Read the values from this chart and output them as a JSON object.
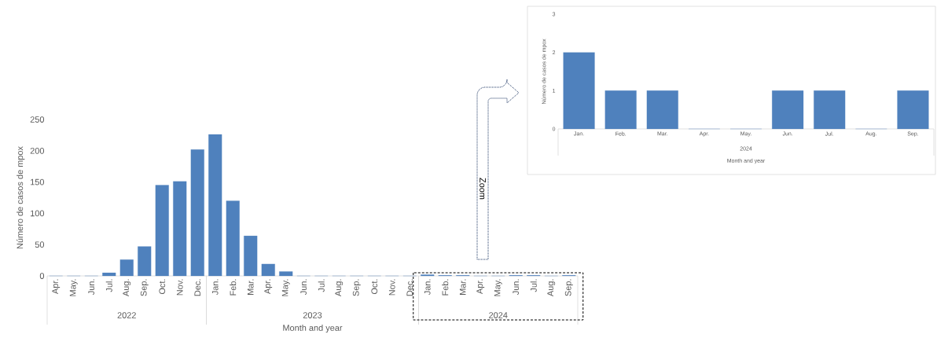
{
  "chart_data": [
    {
      "type": "bar",
      "ylabel": "Número de casos de mpox",
      "xlabel": "Month and year",
      "x": [
        "2022-04",
        "2022-05",
        "2022-06",
        "2022-07",
        "2022-08",
        "2022-09",
        "2022-10",
        "2022-11",
        "2022-12",
        "2023-01",
        "2023-02",
        "2023-03",
        "2023-04",
        "2023-05",
        "2023-06",
        "2023-07",
        "2023-08",
        "2023-09",
        "2023-10",
        "2023-11",
        "2023-12",
        "2024-01",
        "2024-02",
        "2024-03",
        "2024-04",
        "2024-05",
        "2024-06",
        "2024-07",
        "2024-08",
        "2024-09"
      ],
      "values": [
        0,
        0,
        0,
        5,
        26,
        47,
        145,
        151,
        202,
        226,
        120,
        64,
        19,
        7,
        0,
        0,
        0,
        0,
        0,
        0,
        0,
        2,
        1,
        1,
        0,
        0,
        1,
        1,
        0,
        1
      ],
      "color": "#4f81bd",
      "xlim": [
        "2022-03-16",
        "2024-09-16"
      ],
      "ylim": [
        0,
        250
      ],
      "yticks": [
        0,
        50,
        100,
        150,
        200,
        250
      ],
      "xticks": [
        {
          "value": "2022-04",
          "label": "Apr."
        },
        {
          "value": "2022-05",
          "label": "May."
        },
        {
          "value": "2022-06",
          "label": "Jun."
        },
        {
          "value": "2022-07",
          "label": "Jul."
        },
        {
          "value": "2022-08",
          "label": "Aug."
        },
        {
          "value": "2022-09",
          "label": "Sep."
        },
        {
          "value": "2022-10",
          "label": "Oct."
        },
        {
          "value": "2022-11",
          "label": "Nov."
        },
        {
          "value": "2022-12",
          "label": "Dec."
        },
        {
          "value": "2023-01",
          "label": "Jan."
        },
        {
          "value": "2023-02",
          "label": "Feb."
        },
        {
          "value": "2023-03",
          "label": "Mar."
        },
        {
          "value": "2023-04",
          "label": "Apr."
        },
        {
          "value": "2023-05",
          "label": "May."
        },
        {
          "value": "2023-06",
          "label": "Jun."
        },
        {
          "value": "2023-07",
          "label": "Jul."
        },
        {
          "value": "2023-08",
          "label": "Aug."
        },
        {
          "value": "2023-09",
          "label": "Sep."
        },
        {
          "value": "2023-10",
          "label": "Oct."
        },
        {
          "value": "2023-11",
          "label": "Nov."
        },
        {
          "value": "2023-12",
          "label": "Dec."
        },
        {
          "value": "2024-01",
          "label": "Jan."
        },
        {
          "value": "2024-02",
          "label": "Feb."
        },
        {
          "value": "2024-03",
          "label": "Mar."
        },
        {
          "value": "2024-04",
          "label": "Apr."
        },
        {
          "value": "2024-05",
          "label": "May."
        },
        {
          "value": "2024-06",
          "label": "Jun."
        },
        {
          "value": "2024-07",
          "label": "Jul."
        },
        {
          "value": "2024-08",
          "label": "Aug."
        },
        {
          "value": "2024-09",
          "label": "Sep."
        }
      ],
      "annotations": [
        "2022",
        "2023",
        "2024",
        "Zoom"
      ]
    },
    {
      "type": "bar",
      "ylabel": "Número de casos de mpox",
      "xlabel": "Month and year",
      "x": [
        "2024-01",
        "2024-02",
        "2024-03",
        "2024-04",
        "2024-05",
        "2024-06",
        "2024-07",
        "2024-08",
        "2024-09"
      ],
      "values": [
        2,
        1,
        1,
        0,
        0,
        1,
        1,
        0,
        1
      ],
      "color": "#4f81bd",
      "xlim": [
        "2023-12-16",
        "2024-09-16"
      ],
      "ylim": [
        0,
        3
      ],
      "yticks": [
        0,
        1,
        2,
        3
      ],
      "xticks": [
        {
          "value": "2024-01",
          "label": "Jan."
        },
        {
          "value": "2024-02",
          "label": "Feb."
        },
        {
          "value": "2024-03",
          "label": "Mar."
        },
        {
          "value": "2024-04",
          "label": "Apr."
        },
        {
          "value": "2024-05",
          "label": "May."
        },
        {
          "value": "2024-06",
          "label": "Jun."
        },
        {
          "value": "2024-07",
          "label": "Jul."
        },
        {
          "value": "2024-08",
          "label": "Aug."
        },
        {
          "value": "2024-09",
          "label": "Sep."
        }
      ],
      "annotations": [
        "2024"
      ]
    }
  ]
}
